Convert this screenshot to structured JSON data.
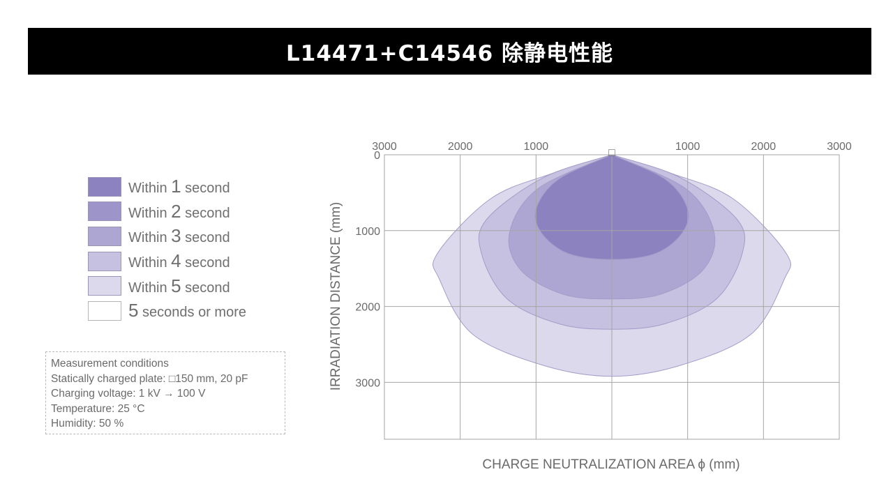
{
  "title": "L14471+C14546 除静电性能",
  "legend": {
    "items": [
      {
        "prefix": "Within ",
        "num": "1",
        "suffix": " second",
        "color": "#8b82bf"
      },
      {
        "prefix": "Within ",
        "num": "2",
        "suffix": " second",
        "color": "#9d95c9"
      },
      {
        "prefix": "Within ",
        "num": "3",
        "suffix": " second",
        "color": "#ada6d2"
      },
      {
        "prefix": "Within ",
        "num": "4",
        "suffix": " second",
        "color": "#c6c1e1"
      },
      {
        "prefix": "Within ",
        "num": "5",
        "suffix": " second",
        "color": "#dcd9ec"
      },
      {
        "prefix": "",
        "num": "5",
        "suffix": " seconds or more",
        "color": "#ffffff"
      }
    ]
  },
  "conditions": {
    "lines": [
      "Measurement conditions",
      "Statically charged plate: □150 mm, 20 pF",
      "Charging voltage: 1 kV → 100 V",
      "Temperature: 25 °C",
      "Humidity: 50 %"
    ]
  },
  "chart_data": {
    "type": "area",
    "xlabel": "CHARGE NEUTRALIZATION AREA ϕ (mm)",
    "ylabel": "IRRADIATION DISTANCE (mm)",
    "x_tick_labels": [
      "3000",
      "2000",
      "1000",
      "1000",
      "2000",
      "3000"
    ],
    "y_tick_labels": [
      "0",
      "1000",
      "2000",
      "3000"
    ],
    "xlim": [
      -3000,
      3000
    ],
    "ylim": [
      0,
      3750
    ],
    "y_inverted": true,
    "grid": true,
    "source_marker": "□",
    "series": [
      {
        "name": "Within 5 second",
        "color": "#dcd9ec",
        "x": [
          0,
          -800,
          -1600,
          -2300,
          -2270,
          -1830,
          -890,
          0,
          890,
          1830,
          2270,
          2300,
          1600,
          800,
          0
        ],
        "y": [
          0,
          250,
          580,
          1300,
          1650,
          2370,
          2780,
          2920,
          2780,
          2370,
          1650,
          1300,
          580,
          250,
          0
        ]
      },
      {
        "name": "Within 4 second",
        "color": "#c6c1e1",
        "x": [
          0,
          -900,
          -1650,
          -1720,
          -1380,
          -690,
          0,
          690,
          1380,
          1720,
          1650,
          900,
          0
        ],
        "y": [
          0,
          300,
          850,
          1300,
          1900,
          2230,
          2300,
          2230,
          1900,
          1300,
          850,
          300,
          0
        ]
      },
      {
        "name": "Within 3 second",
        "color": "#ada6d2",
        "x": [
          0,
          -980,
          -1350,
          -1200,
          -640,
          0,
          640,
          1200,
          1350,
          980,
          0
        ],
        "y": [
          0,
          450,
          1030,
          1520,
          1840,
          1900,
          1840,
          1520,
          1030,
          450,
          0
        ]
      },
      {
        "name": "Within 1 second",
        "color": "#8b82bf",
        "x": [
          0,
          -700,
          -995,
          -935,
          -580,
          0,
          580,
          935,
          995,
          700,
          0
        ],
        "y": [
          0,
          320,
          700,
          1020,
          1300,
          1380,
          1300,
          1020,
          700,
          320,
          0
        ]
      }
    ]
  }
}
